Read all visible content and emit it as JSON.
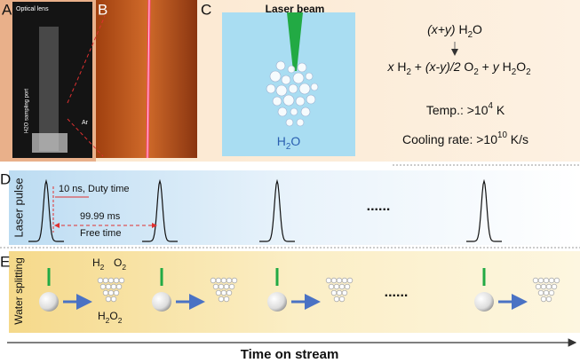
{
  "panels": {
    "a": {
      "label": "A",
      "lens": "Optical lens",
      "port": "H2O sampling port",
      "gas": "Ar"
    },
    "b": {
      "label": "B"
    },
    "c": {
      "label": "C",
      "beam": "Laser beam",
      "water": [
        {
          "t": "H"
        },
        {
          "t": "2",
          "sub": true
        },
        {
          "t": "O"
        }
      ],
      "reactant": [
        {
          "t": "(x+y)",
          "it": true
        },
        {
          "t": " H"
        },
        {
          "t": "2",
          "sub": true
        },
        {
          "t": "O"
        }
      ],
      "products": [
        {
          "t": "x",
          "it": true
        },
        {
          "t": " H"
        },
        {
          "t": "2",
          "sub": true
        },
        {
          "t": " + "
        },
        {
          "t": "(x-y)/2",
          "it": true
        },
        {
          "t": " O"
        },
        {
          "t": "2",
          "sub": true
        },
        {
          "t": " + "
        },
        {
          "t": "y",
          "it": true
        },
        {
          "t": " H"
        },
        {
          "t": "2",
          "sub": true
        },
        {
          "t": "O"
        },
        {
          "t": "2",
          "sub": true
        }
      ],
      "temp": [
        {
          "t": "Temp.: >10"
        },
        {
          "t": "4",
          "sup": true
        },
        {
          "t": " K"
        }
      ],
      "cooling": [
        {
          "t": "Cooling rate: >10"
        },
        {
          "t": "10",
          "sup": true
        },
        {
          "t": " K/s"
        }
      ]
    },
    "d": {
      "label": "D",
      "axis": "Laser pulse",
      "duty": "10 ns, Duty time",
      "period": "99.99 ms",
      "free": "Free time",
      "ellipsis": "......"
    },
    "e": {
      "label": "E",
      "axis": "Water splitting",
      "h2": [
        {
          "t": "H"
        },
        {
          "t": "2",
          "sub": true
        }
      ],
      "o2": [
        {
          "t": "O"
        },
        {
          "t": "2",
          "sub": true
        }
      ],
      "h2o2": [
        {
          "t": "H"
        },
        {
          "t": "2",
          "sub": true
        },
        {
          "t": "O"
        },
        {
          "t": "2",
          "sub": true
        }
      ],
      "ellipsis": "......"
    }
  },
  "x_axis": "Time on stream"
}
